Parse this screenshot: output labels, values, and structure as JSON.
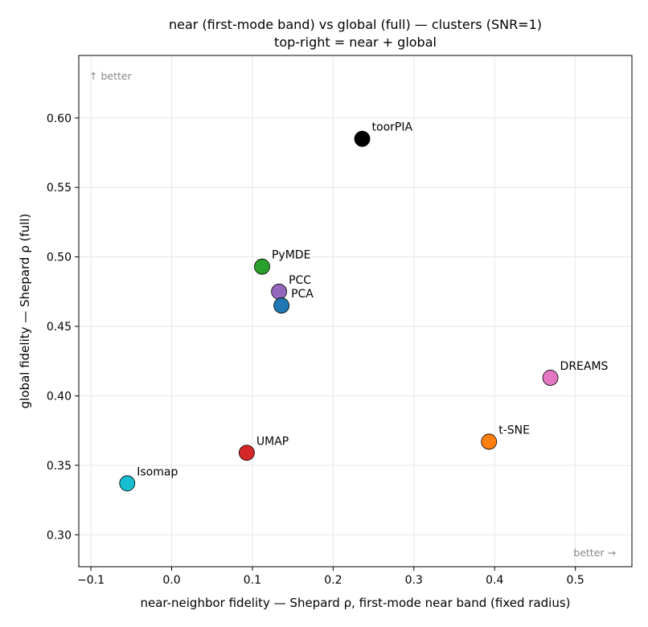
{
  "chart_data": {
    "type": "scatter",
    "title": "near (first-mode band) vs global (full) — clusters (SNR=1)",
    "subtitle": "top-right = near + global",
    "xlabel": "near-neighbor fidelity — Shepard ρ, first-mode near band (fixed radius)",
    "ylabel": "global fidelity — Shepard ρ (full)",
    "xlim": [
      -0.115,
      0.57
    ],
    "ylim": [
      0.277,
      0.645
    ],
    "x_ticks": [
      -0.1,
      0.0,
      0.1,
      0.2,
      0.3,
      0.4,
      0.5
    ],
    "x_tick_labels": [
      "−0.1",
      "0.0",
      "0.1",
      "0.2",
      "0.3",
      "0.4",
      "0.5"
    ],
    "y_ticks": [
      0.3,
      0.35,
      0.4,
      0.45,
      0.5,
      0.55,
      0.6
    ],
    "y_tick_labels": [
      "0.30",
      "0.35",
      "0.40",
      "0.45",
      "0.50",
      "0.55",
      "0.60"
    ],
    "grid": true,
    "annotations": {
      "top_left": "↑ better",
      "bottom_right": "better →"
    },
    "points": [
      {
        "name": "toorPIA",
        "x": 0.236,
        "y": 0.585,
        "color": "#000000"
      },
      {
        "name": "PyMDE",
        "x": 0.112,
        "y": 0.493,
        "color": "#2ca02c"
      },
      {
        "name": "PCC",
        "x": 0.133,
        "y": 0.475,
        "color": "#9467bd"
      },
      {
        "name": "PCA",
        "x": 0.136,
        "y": 0.465,
        "color": "#1f77b4"
      },
      {
        "name": "DREAMS",
        "x": 0.469,
        "y": 0.413,
        "color": "#e377c2"
      },
      {
        "name": "t-SNE",
        "x": 0.393,
        "y": 0.367,
        "color": "#ff7f0e"
      },
      {
        "name": "UMAP",
        "x": 0.093,
        "y": 0.359,
        "color": "#d62728"
      },
      {
        "name": "Isomap",
        "x": -0.055,
        "y": 0.337,
        "color": "#17becf"
      }
    ]
  }
}
